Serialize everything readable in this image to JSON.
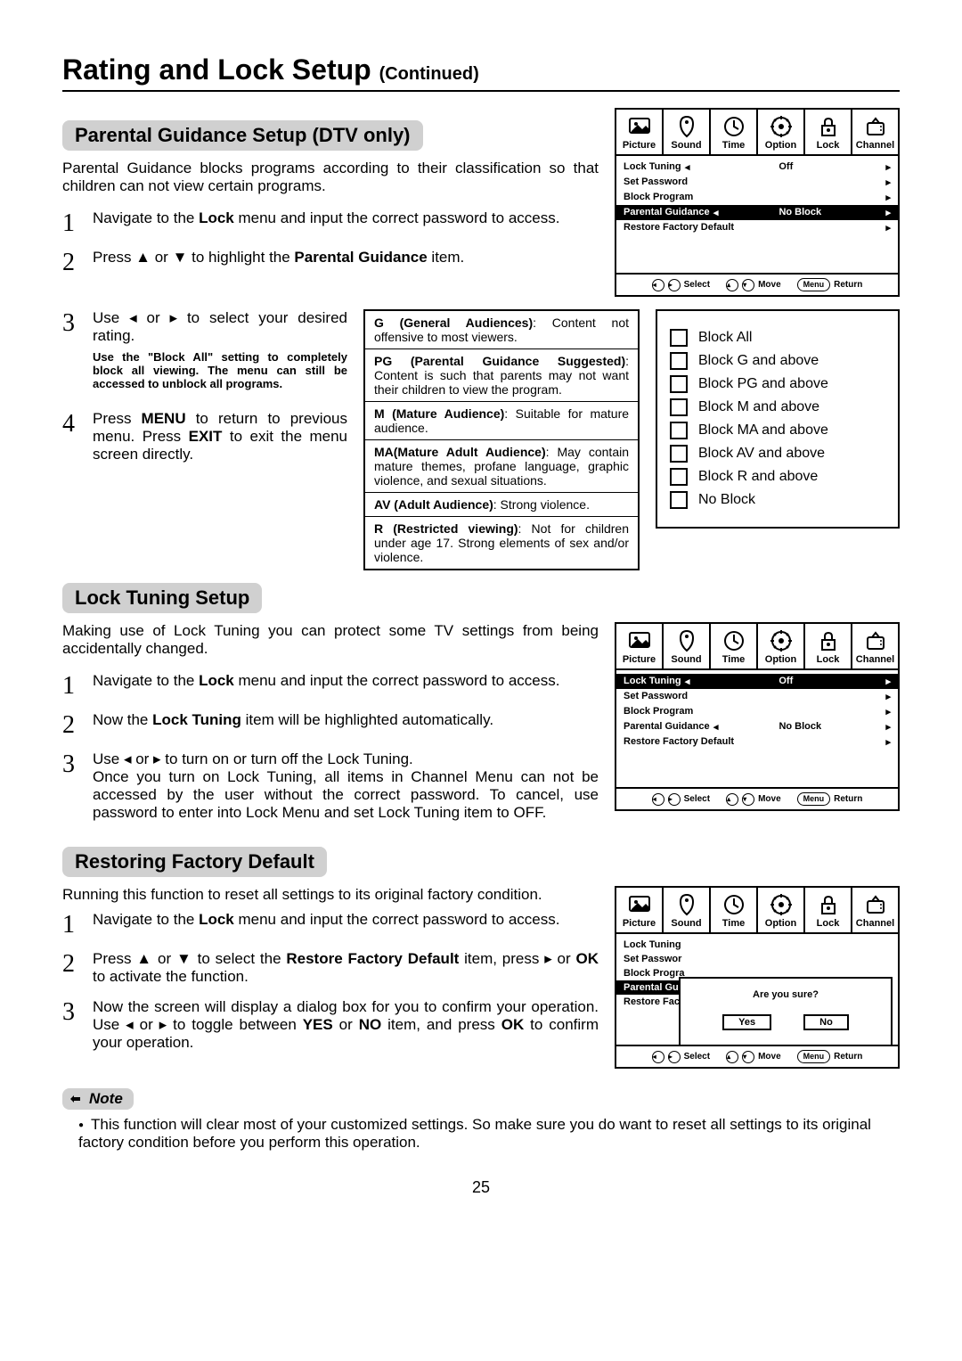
{
  "page_title": "Rating and Lock Setup",
  "page_title_suffix": "(Continued)",
  "page_number": "25",
  "sec1": {
    "title": "Parental Guidance Setup (DTV only)",
    "intro": "Parental Guidance blocks programs according to their classification so that children can not view certain programs.",
    "steps": {
      "s1": "Navigate to the Lock menu and input the correct password to access.",
      "s2": "Press ▲ or ▼ to highlight the Parental Guidance item.",
      "s3": "Use ◂ or ▸ to select your desired rating.",
      "s3_hint": "Use the \"Block All\" setting to completely block all viewing. The menu can still be accessed to unblock all programs.",
      "s4": "Press MENU to return to previous menu. Press EXIT to exit the menu screen directly."
    },
    "defs": {
      "g": {
        "b": "G (General Audiences)",
        "t": ": Content not offensive to most viewers."
      },
      "pg": {
        "b": "PG (Parental Guidance Suggested)",
        "t": ": Content is such that parents may not want their children to view the program."
      },
      "m": {
        "b": "M (Mature Audience)",
        "t": ": Suitable for mature audience."
      },
      "ma": {
        "b": "MA(Mature Adult Audience)",
        "t": ": May contain mature themes, profane language, graphic violence, and sexual situations."
      },
      "av": {
        "b": "AV (Adult Audience)",
        "t": ": Strong violence."
      },
      "r": {
        "b": "R (Restricted viewing)",
        "t": ": Not for children under age 17. Strong elements of sex and/or violence."
      }
    },
    "block_options": [
      "Block All",
      "Block G and above",
      "Block PG and above",
      "Block M and above",
      "Block MA and above",
      "Block AV and above",
      "Block R and above",
      "No Block"
    ]
  },
  "sec2": {
    "title": "Lock Tuning Setup",
    "intro": "Making use of Lock Tuning you can protect some TV settings from being accidentally changed.",
    "steps": {
      "s1": "Navigate to the Lock menu and input the correct password to access.",
      "s2": "Now the Lock Tuning item will be highlighted automatically.",
      "s3": "Use ◂ or ▸ to turn on or turn off the Lock Tuning.\nOnce you turn on Lock Tuning, all items in Channel Menu can not be accessed by the user without the correct password. To cancel, use password to enter into Lock Menu and set Lock Tuning item to OFF."
    }
  },
  "sec3": {
    "title": "Restoring Factory Default",
    "intro": "Running this function to reset all settings to its original factory condition.",
    "steps": {
      "s1": "Navigate to the Lock menu and input the correct password to access.",
      "s2": "Press ▲ or ▼ to select the Restore Factory Default item, press ▸ or OK to activate the function.",
      "s3": "Now the screen will display a dialog box for you to confirm your operation. Use ◂ or ▸ to toggle between YES or NO item, and press OK to confirm your operation."
    },
    "note_label": "Note",
    "note_text": "This function will clear most of your customized settings.  So make sure you do want to reset all settings to its original factory condition before you perform this operation."
  },
  "osd": {
    "tabs": [
      "Picture",
      "Sound",
      "Time",
      "Option",
      "Lock",
      "Channel"
    ],
    "rows": {
      "lock_tuning": "Lock Tuning",
      "set_password": "Set Password",
      "block_program": "Block Program",
      "parental_guidance": "Parental Guidance",
      "restore": "Restore Factory Default",
      "off": "Off",
      "no_block": "No Block"
    },
    "footer": {
      "select": "Select",
      "move": "Move",
      "menu": "Menu",
      "return": "Return"
    },
    "dialog": {
      "q": "Are you sure?",
      "yes": "Yes",
      "no": "No"
    }
  }
}
